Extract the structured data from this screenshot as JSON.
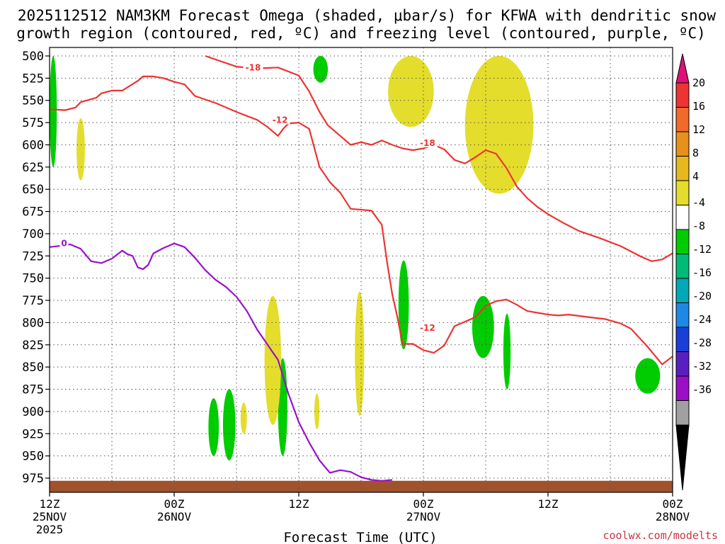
{
  "title": {
    "line1": "2025112512 NAM3KM Forecast Omega (shaded, μbar/s) for KFWA with dendritic snow",
    "line2": "growth region (contoured, red, ºC) and freezing level (contoured, purple, ºC)"
  },
  "xlabel": "Forecast Time (UTC)",
  "credit": "coolwx.com/modelts",
  "chart_data": {
    "type": "time-height cross section",
    "x_unit": "hours since 2025-11-25 12Z",
    "x_range": [
      0,
      60
    ],
    "y_unit": "hPa",
    "y_range": [
      975,
      500
    ],
    "y_ticks": [
      500,
      525,
      550,
      575,
      600,
      625,
      650,
      675,
      700,
      725,
      750,
      775,
      800,
      825,
      850,
      875,
      900,
      925,
      950,
      975
    ],
    "x_ticks": [
      {
        "hour": 0,
        "lines": [
          "12Z",
          "25NOV",
          "2025"
        ]
      },
      {
        "hour": 12,
        "lines": [
          "00Z",
          "26NOV"
        ]
      },
      {
        "hour": 24,
        "lines": [
          "12Z"
        ]
      },
      {
        "hour": 36,
        "lines": [
          "00Z",
          "27NOV"
        ]
      },
      {
        "hour": 48,
        "lines": [
          "12Z"
        ]
      },
      {
        "hour": 60,
        "lines": [
          "00Z",
          "28NOV"
        ]
      }
    ],
    "grid": true,
    "colorbar": {
      "unit": "μbar/s",
      "labels": [
        "20",
        "16",
        "12",
        "8",
        "4",
        "-4",
        "-8",
        "-12",
        "-16",
        "-20",
        "-24",
        "-28",
        "-32",
        "-36"
      ],
      "colors": [
        "#dd1177",
        "#ee3333",
        "#f26a2a",
        "#e8901a",
        "#e6b81e",
        "#e4dd2c",
        "#ffffff",
        "#00cc00",
        "#00bb77",
        "#00a8b8",
        "#1e88e5",
        "#1a3fd8",
        "#5a1fc0",
        "#9b0fc8",
        "#a0a0a0",
        "#000000"
      ]
    },
    "contours": [
      {
        "label": "-18",
        "color": "#ee3333",
        "points": [
          [
            15.0,
            500
          ],
          [
            18.0,
            512
          ],
          [
            20.0,
            514
          ],
          [
            22.0,
            513
          ],
          [
            24.0,
            522
          ],
          [
            25.0,
            540
          ],
          [
            26.0,
            563
          ],
          [
            26.8,
            578
          ],
          [
            28.0,
            590
          ],
          [
            29.0,
            600
          ],
          [
            30.0,
            597
          ],
          [
            31.0,
            600
          ],
          [
            32.0,
            595
          ],
          [
            33.0,
            600
          ],
          [
            34.0,
            604
          ],
          [
            35.0,
            606
          ],
          [
            36.0,
            604
          ],
          [
            37.0,
            600
          ],
          [
            38.0,
            605
          ],
          [
            39.0,
            617
          ],
          [
            40.0,
            621
          ],
          [
            41.0,
            614
          ],
          [
            42.0,
            606
          ],
          [
            43.0,
            610
          ],
          [
            44.0,
            626
          ],
          [
            45.0,
            647
          ],
          [
            46.0,
            660
          ],
          [
            47.0,
            670
          ],
          [
            48.0,
            678
          ],
          [
            49.5,
            688
          ],
          [
            51.0,
            697
          ],
          [
            53.0,
            705
          ],
          [
            55.0,
            714
          ],
          [
            57.0,
            726
          ],
          [
            58.0,
            731
          ],
          [
            59.0,
            729
          ],
          [
            60.0,
            722
          ]
        ]
      },
      {
        "label": "-12",
        "color": "#ee3333",
        "points": [
          [
            0.0,
            560
          ],
          [
            1.5,
            561
          ],
          [
            2.5,
            558
          ],
          [
            3.0,
            552
          ],
          [
            4.5,
            547
          ],
          [
            5.0,
            542
          ],
          [
            6.0,
            539
          ],
          [
            7.0,
            539
          ],
          [
            8.5,
            528
          ],
          [
            9.0,
            523
          ],
          [
            10.0,
            523
          ],
          [
            11.0,
            525
          ],
          [
            12.0,
            529
          ],
          [
            13.0,
            532
          ],
          [
            14.0,
            545
          ],
          [
            16.0,
            553
          ],
          [
            18.0,
            563
          ],
          [
            20.0,
            572
          ],
          [
            21.0,
            580
          ],
          [
            22.0,
            590
          ],
          [
            22.5,
            582
          ],
          [
            23.0,
            576
          ],
          [
            24.0,
            575
          ],
          [
            25.0,
            582
          ],
          [
            26.0,
            625
          ],
          [
            27.0,
            642
          ],
          [
            28.0,
            654
          ],
          [
            29.0,
            672
          ],
          [
            31.0,
            674
          ],
          [
            32.0,
            690
          ],
          [
            32.5,
            732
          ],
          [
            33.0,
            768
          ],
          [
            33.5,
            794
          ],
          [
            34.0,
            824
          ],
          [
            35.0,
            824
          ],
          [
            36.0,
            831
          ],
          [
            37.0,
            834
          ],
          [
            38.0,
            826
          ],
          [
            39.0,
            804
          ],
          [
            40.0,
            799
          ],
          [
            41.0,
            794
          ],
          [
            42.0,
            781
          ],
          [
            43.0,
            776
          ],
          [
            44.0,
            774
          ],
          [
            45.0,
            780
          ],
          [
            46.0,
            787
          ],
          [
            48.0,
            791
          ],
          [
            49.0,
            792
          ],
          [
            50.0,
            791
          ],
          [
            52.0,
            794
          ],
          [
            53.5,
            796
          ],
          [
            55.0,
            801
          ],
          [
            56.0,
            807
          ],
          [
            57.5,
            826
          ],
          [
            59.0,
            847
          ],
          [
            60.0,
            838
          ]
        ]
      },
      {
        "label": "0",
        "color": "#9911cc",
        "points": [
          [
            0.0,
            715
          ],
          [
            1.5,
            713
          ],
          [
            2.0,
            712
          ],
          [
            3.0,
            717
          ],
          [
            4.0,
            731
          ],
          [
            5.0,
            733
          ],
          [
            6.0,
            728
          ],
          [
            7.0,
            719
          ],
          [
            7.5,
            723
          ],
          [
            8.0,
            725
          ],
          [
            8.5,
            738
          ],
          [
            9.0,
            740
          ],
          [
            9.5,
            735
          ],
          [
            10.0,
            722
          ],
          [
            11.0,
            716
          ],
          [
            12.0,
            711
          ],
          [
            13.0,
            715
          ],
          [
            14.0,
            727
          ],
          [
            15.0,
            741
          ],
          [
            16.0,
            752
          ],
          [
            17.0,
            760
          ],
          [
            18.0,
            771
          ],
          [
            19.0,
            787
          ],
          [
            20.0,
            808
          ],
          [
            21.0,
            825
          ],
          [
            22.0,
            842
          ],
          [
            23.0,
            880
          ],
          [
            24.0,
            912
          ],
          [
            25.0,
            935
          ],
          [
            26.0,
            955
          ],
          [
            27.0,
            969
          ],
          [
            28.0,
            966
          ],
          [
            29.0,
            968
          ],
          [
            30.0,
            974
          ],
          [
            31.0,
            977
          ],
          [
            32.0,
            978
          ],
          [
            33.0,
            977
          ]
        ]
      }
    ],
    "contour_labels": [
      {
        "text": "-18",
        "hour": 19.6,
        "hPa": 513,
        "color": "#ee3333"
      },
      {
        "text": "-12",
        "hour": 22.2,
        "hPa": 572,
        "color": "#ee3333"
      },
      {
        "text": "-18",
        "hour": 36.4,
        "hPa": 598,
        "color": "#ee3333"
      },
      {
        "text": "-12",
        "hour": 36.4,
        "hPa": 806,
        "color": "#ee3333"
      },
      {
        "text": "0",
        "hour": 1.4,
        "hPa": 711,
        "color": "#9911cc"
      }
    ],
    "omega_regions": [
      {
        "sign": "upward",
        "level": "-4 to -8",
        "color": "#00cc00",
        "hour_range": [
          0.0,
          0.7
        ],
        "hPa_range": [
          500,
          625
        ]
      },
      {
        "sign": "upward",
        "level": "-4 to -8",
        "color": "#00cc00",
        "hour_range": [
          25.4,
          26.8
        ],
        "hPa_range": [
          500,
          530
        ]
      },
      {
        "sign": "upward",
        "level": "-4 to -8",
        "color": "#00cc00",
        "hour_range": [
          15.3,
          16.3
        ],
        "hPa_range": [
          885,
          950
        ]
      },
      {
        "sign": "upward",
        "level": "-4 to -12",
        "color": "#00cc00",
        "hour_range": [
          16.7,
          17.9
        ],
        "hPa_range": [
          875,
          955
        ]
      },
      {
        "sign": "upward",
        "level": "-4 to -8",
        "color": "#00cc00",
        "hour_range": [
          22.0,
          22.9
        ],
        "hPa_range": [
          840,
          950
        ]
      },
      {
        "sign": "upward",
        "level": "-4 to -8",
        "color": "#00cc00",
        "hour_range": [
          33.6,
          34.6
        ],
        "hPa_range": [
          730,
          830
        ]
      },
      {
        "sign": "upward",
        "level": "-4 to -8",
        "color": "#00cc00",
        "hour_range": [
          40.7,
          42.8
        ],
        "hPa_range": [
          770,
          840
        ]
      },
      {
        "sign": "upward",
        "level": "-4 to -8",
        "color": "#00cc00",
        "hour_range": [
          43.7,
          44.4
        ],
        "hPa_range": [
          790,
          875
        ]
      },
      {
        "sign": "upward",
        "level": "-4 to -8",
        "color": "#00cc00",
        "hour_range": [
          56.4,
          58.8
        ],
        "hPa_range": [
          840,
          880
        ]
      },
      {
        "sign": "downward",
        "level": "4 to 8",
        "color": "#e4dd2c",
        "hour_range": [
          2.6,
          3.4
        ],
        "hPa_range": [
          570,
          640
        ]
      },
      {
        "sign": "downward",
        "level": "4 to 8",
        "color": "#e4dd2c",
        "hour_range": [
          32.6,
          37.0
        ],
        "hPa_range": [
          500,
          580
        ]
      },
      {
        "sign": "downward",
        "level": "4 to 8",
        "color": "#e4dd2c",
        "hour_range": [
          40.0,
          46.6
        ],
        "hPa_range": [
          500,
          655
        ]
      },
      {
        "sign": "downward",
        "level": "4 to 12",
        "color": "#e4dd2c",
        "hour_range": [
          20.7,
          22.3
        ],
        "hPa_range": [
          770,
          915
        ]
      },
      {
        "sign": "downward",
        "level": "4 to 8",
        "color": "#e4dd2c",
        "hour_range": [
          18.4,
          19.0
        ],
        "hPa_range": [
          890,
          925
        ]
      },
      {
        "sign": "downward",
        "level": "4 to 8",
        "color": "#e4dd2c",
        "hour_range": [
          25.5,
          26.0
        ],
        "hPa_range": [
          880,
          920
        ]
      },
      {
        "sign": "downward",
        "level": "4 to 8",
        "color": "#e4dd2c",
        "hour_range": [
          29.4,
          30.3
        ],
        "hPa_range": [
          765,
          905
        ]
      }
    ],
    "terrain": {
      "color": "#a0522d",
      "hPa_top": 978
    }
  }
}
